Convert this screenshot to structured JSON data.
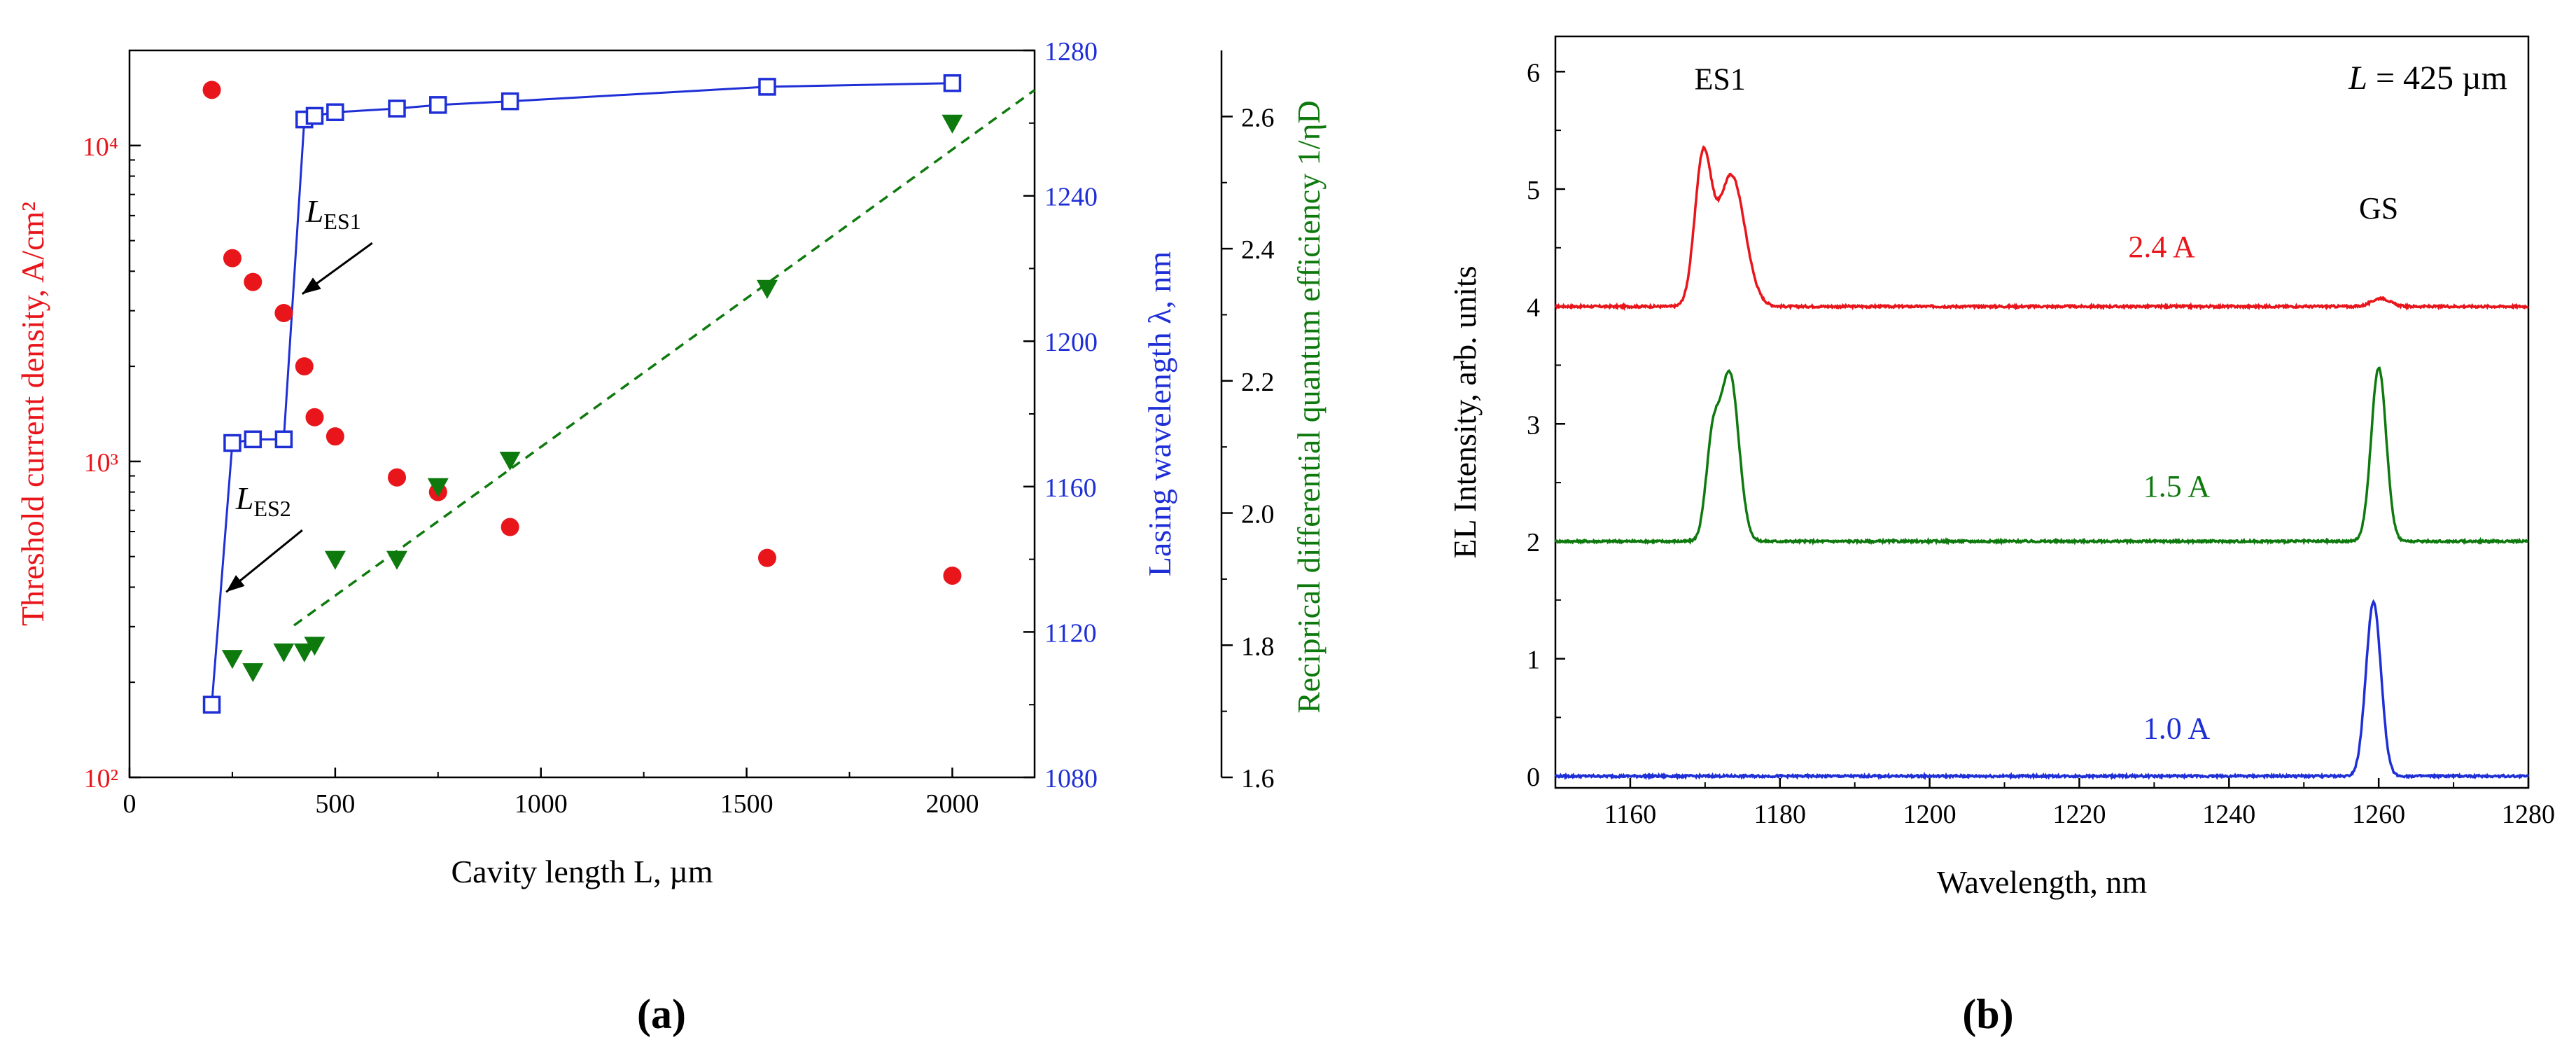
{
  "figure": {
    "panel_a_label": "(a)",
    "panel_b_label": "(b)"
  },
  "chart_data": [
    {
      "id": "a",
      "type": "scatter",
      "xlabel": "Cavity length L, µm",
      "xlim": [
        0,
        2200
      ],
      "xticks": [
        0,
        500,
        1000,
        1500,
        2000
      ],
      "colors": {
        "threshold": "#e8151b",
        "wavelength": "#1f2fd6",
        "efficiency": "#0e7a0e"
      },
      "axes": {
        "left": {
          "label": "Threshold current density, A/cm²",
          "scale": "log",
          "ylim": [
            100,
            20000
          ],
          "ticks": [
            100,
            1000,
            10000
          ],
          "tick_labels": [
            "10²",
            "10³",
            "10⁴"
          ]
        },
        "right1": {
          "label": "Lasing wavelength λ, nm",
          "ylim": [
            1080,
            1280
          ],
          "ticks": [
            1080,
            1120,
            1160,
            1200,
            1240,
            1280
          ]
        },
        "right2": {
          "label": "Reciprical differential quantum efficiency 1/ηD",
          "ylim": [
            1.6,
            2.7
          ],
          "ticks": [
            1.6,
            1.8,
            2.0,
            2.2,
            2.4,
            2.6
          ]
        }
      },
      "series": [
        {
          "name": "Threshold current density",
          "axis": "left",
          "marker": "circle",
          "points": [
            [
              200,
              15000
            ],
            [
              250,
              4400
            ],
            [
              300,
              3700
            ],
            [
              375,
              2950
            ],
            [
              425,
              2000
            ],
            [
              450,
              1380
            ],
            [
              500,
              1200
            ],
            [
              650,
              890
            ],
            [
              750,
              800
            ],
            [
              925,
              620
            ],
            [
              1550,
              495
            ],
            [
              2000,
              435
            ]
          ]
        },
        {
          "name": "Lasing wavelength",
          "axis": "right1",
          "marker": "square-open",
          "connect": true,
          "points": [
            [
              200,
              1100
            ],
            [
              250,
              1172
            ],
            [
              300,
              1173
            ],
            [
              375,
              1173
            ],
            [
              425,
              1261
            ],
            [
              450,
              1262
            ],
            [
              500,
              1263
            ],
            [
              650,
              1264
            ],
            [
              750,
              1265
            ],
            [
              925,
              1266
            ],
            [
              1550,
              1270
            ],
            [
              2000,
              1271
            ]
          ]
        },
        {
          "name": "Reciprocal differential quantum efficiency",
          "axis": "right2",
          "marker": "triangle-down",
          "points": [
            [
              250,
              1.78
            ],
            [
              300,
              1.76
            ],
            [
              375,
              1.79
            ],
            [
              425,
              1.79
            ],
            [
              450,
              1.8
            ],
            [
              500,
              1.93
            ],
            [
              650,
              1.93
            ],
            [
              750,
              2.04
            ],
            [
              925,
              2.08
            ],
            [
              1550,
              2.34
            ],
            [
              2000,
              2.59
            ]
          ]
        },
        {
          "name": "Efficiency linear fit",
          "axis": "right2",
          "style": "dashed",
          "points": [
            [
              400,
              1.83
            ],
            [
              2200,
              2.64
            ]
          ]
        }
      ],
      "annotations": [
        {
          "text": "L",
          "sub": "ES1",
          "arrow_from": [
            590,
            1227
          ],
          "arrow_to": [
            420,
            1213
          ]
        },
        {
          "text": "L",
          "sub": "ES2",
          "arrow_from": [
            420,
            1148
          ],
          "arrow_to": [
            235,
            1131
          ]
        }
      ]
    },
    {
      "id": "b",
      "type": "line",
      "xlabel": "Wavelength, nm",
      "ylabel": "EL Intensity, arb. units",
      "xlim": [
        1150,
        1280
      ],
      "ylim": [
        -0.1,
        6.3
      ],
      "xticks": [
        1160,
        1180,
        1200,
        1220,
        1240,
        1260,
        1280
      ],
      "yticks": [
        0,
        1,
        2,
        3,
        4,
        5,
        6
      ],
      "title_annotation": "L = 425 µm",
      "title_prefix": "L",
      "title_suffix": " = 425 µm",
      "peak_labels": [
        {
          "text": "ES1",
          "x": 1172,
          "y": 5.85
        },
        {
          "text": "GS",
          "x": 1260,
          "y": 4.75
        }
      ],
      "series": [
        {
          "name": "2.4 A",
          "color": "#e8151b",
          "baseline": 4,
          "label_x": 1231,
          "label_y": 4.42,
          "peaks": [
            [
              1169.7,
              1.22,
              1.1
            ],
            [
              1173.5,
              1.12,
              1.8
            ],
            [
              1260.3,
              0.07,
              1.2
            ]
          ]
        },
        {
          "name": "1.5 A",
          "color": "#0e7a0e",
          "baseline": 2,
          "label_x": 1233,
          "label_y": 2.38,
          "peaks": [
            [
              1171.0,
              0.8,
              0.9
            ],
            [
              1173.3,
              1.42,
              1.2
            ],
            [
              1260.0,
              1.48,
              1.0
            ]
          ]
        },
        {
          "name": "1.0 A",
          "color": "#1f2fd6",
          "baseline": 0,
          "label_x": 1233,
          "label_y": 0.32,
          "peaks": [
            [
              1259.3,
              1.48,
              1.0
            ]
          ]
        }
      ]
    }
  ]
}
